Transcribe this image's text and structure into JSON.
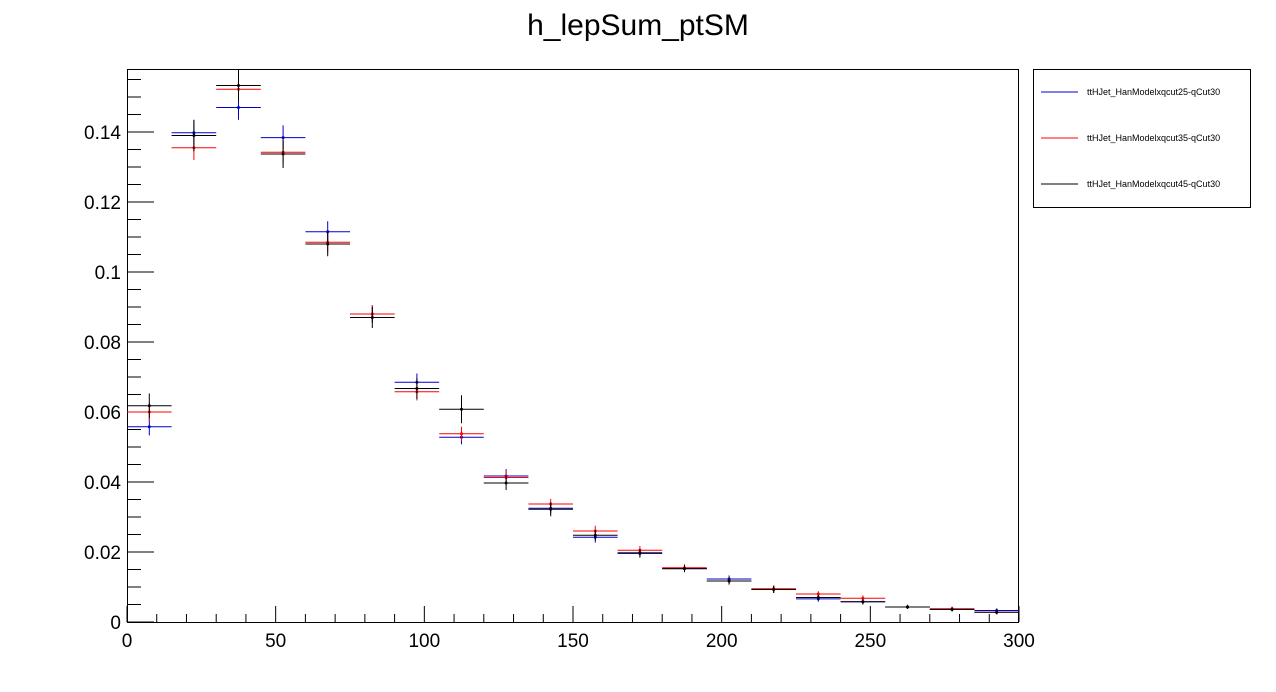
{
  "chart_data": {
    "type": "scatter",
    "title": "h_lepSum_ptSM",
    "xlabel": "",
    "ylabel": "",
    "xlim": [
      0,
      300
    ],
    "ylim": [
      0,
      0.158
    ],
    "grid": false,
    "legend_position": "top-right-outside",
    "x_ticks": [
      "0",
      "50",
      "100",
      "150",
      "200",
      "250",
      "300"
    ],
    "y_ticks": [
      "0",
      "0.02",
      "0.04",
      "0.06",
      "0.08",
      "0.1",
      "0.12",
      "0.14"
    ],
    "bin_width": 15,
    "x": [
      7.5,
      22.5,
      37.5,
      52.5,
      67.5,
      82.5,
      97.5,
      112.5,
      127.5,
      142.5,
      157.5,
      172.5,
      187.5,
      202.5,
      217.5,
      232.5,
      247.5,
      262.5,
      277.5,
      292.5
    ],
    "series": [
      {
        "name": "ttHJet_HanModelxqcut25-qCut30",
        "color": "#0000cc",
        "values": [
          0.0558,
          0.1398,
          0.147,
          0.1384,
          0.1115,
          0.088,
          0.0685,
          0.0528,
          0.0417,
          0.0325,
          0.0242,
          0.0198,
          0.0153,
          0.0123,
          0.0093,
          0.0066,
          0.0058,
          0.0043,
          0.0036,
          0.0033
        ],
        "errors": [
          0.0025,
          0.0035,
          0.0035,
          0.0035,
          0.003,
          0.0025,
          0.0025,
          0.002,
          0.002,
          0.0015,
          0.0015,
          0.0012,
          0.001,
          0.001,
          0.001,
          0.0008,
          0.0008,
          0.0006,
          0.0006,
          0.0006
        ]
      },
      {
        "name": "ttHJet_HanModelxqcut35-qCut30",
        "color": "#ff0000",
        "values": [
          0.06,
          0.1355,
          0.1522,
          0.1342,
          0.1085,
          0.088,
          0.0658,
          0.0538,
          0.0413,
          0.0337,
          0.026,
          0.0205,
          0.0155,
          0.0117,
          0.0095,
          0.008,
          0.0068,
          0.0043,
          0.0038,
          0.0028
        ],
        "errors": [
          0.0025,
          0.0035,
          0.0035,
          0.0035,
          0.003,
          0.0025,
          0.0025,
          0.002,
          0.002,
          0.0015,
          0.0015,
          0.0012,
          0.001,
          0.001,
          0.001,
          0.0008,
          0.0008,
          0.0006,
          0.0006,
          0.0006
        ]
      },
      {
        "name": "ttHJet_HanModelxqcut45-qCut30",
        "color": "#000000",
        "values": [
          0.0618,
          0.139,
          0.1533,
          0.1337,
          0.108,
          0.087,
          0.0667,
          0.0608,
          0.0397,
          0.0322,
          0.0248,
          0.0196,
          0.0152,
          0.0117,
          0.0093,
          0.007,
          0.0058,
          0.0043,
          0.0036,
          0.0028
        ],
        "errors": [
          0.0035,
          0.0045,
          0.0045,
          0.004,
          0.0035,
          0.003,
          0.003,
          0.004,
          0.002,
          0.002,
          0.0015,
          0.0012,
          0.001,
          0.001,
          0.001,
          0.0008,
          0.0008,
          0.0006,
          0.0006,
          0.0006
        ]
      }
    ]
  }
}
